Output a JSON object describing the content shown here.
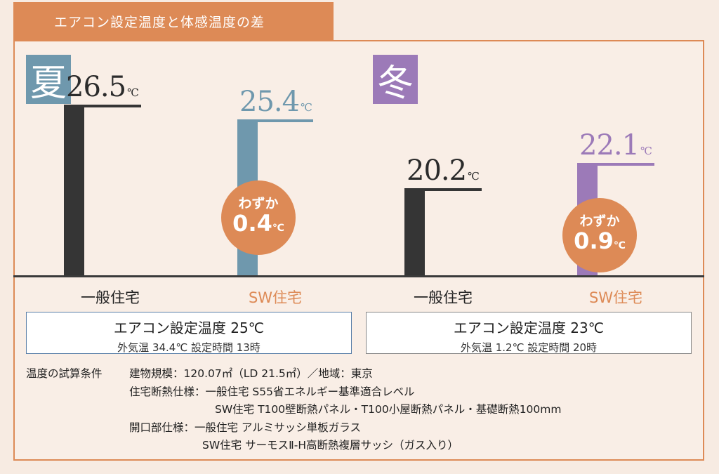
{
  "title": "エアコン設定温度と体感温度の差",
  "colors": {
    "orange": "#dd8a56",
    "summer": "#6f98ad",
    "winter": "#9c7ab8",
    "general": "#353535"
  },
  "summer": {
    "season_label": "夏",
    "general_value": "26.5",
    "sw_value": "25.4",
    "unit": "℃",
    "diff_label": "わずか",
    "diff_value": "0.4",
    "general_label": "一般住宅",
    "sw_label": "SW住宅",
    "setting_label": "エアコン設定温度 25℃",
    "setting_detail": "外気温 34.4℃  設定時間 13時"
  },
  "winter": {
    "season_label": "冬",
    "general_value": "20.2",
    "sw_value": "22.1",
    "unit": "℃",
    "diff_label": "わずか",
    "diff_value": "0.9",
    "general_label": "一般住宅",
    "sw_label": "SW住宅",
    "setting_label": "エアコン設定温度 23℃",
    "setting_detail": "外気温 1.2℃  設定時間 20時"
  },
  "conditions": {
    "heading": "温度の試算条件",
    "line1": "建物規模：120.07㎡（LD 21.5㎡）／地域：東京",
    "line2": "住宅断熱仕様：一般住宅 S55省エネルギー基準適合レベル",
    "line3": "SW住宅 T100壁断熱パネル・T100小屋断熱パネル・基礎断熱100mm",
    "line4": "開口部仕様：一般住宅 アルミサッシ単板ガラス",
    "line5": "SW住宅 サーモスⅡ-H高断熱複層サッシ（ガス入り）"
  },
  "chart_data": {
    "type": "bar",
    "categories": [
      "夏 一般住宅",
      "夏 SW住宅",
      "冬 一般住宅",
      "冬 SW住宅"
    ],
    "values": [
      26.5,
      25.4,
      20.2,
      22.1
    ],
    "unit": "℃"
  }
}
